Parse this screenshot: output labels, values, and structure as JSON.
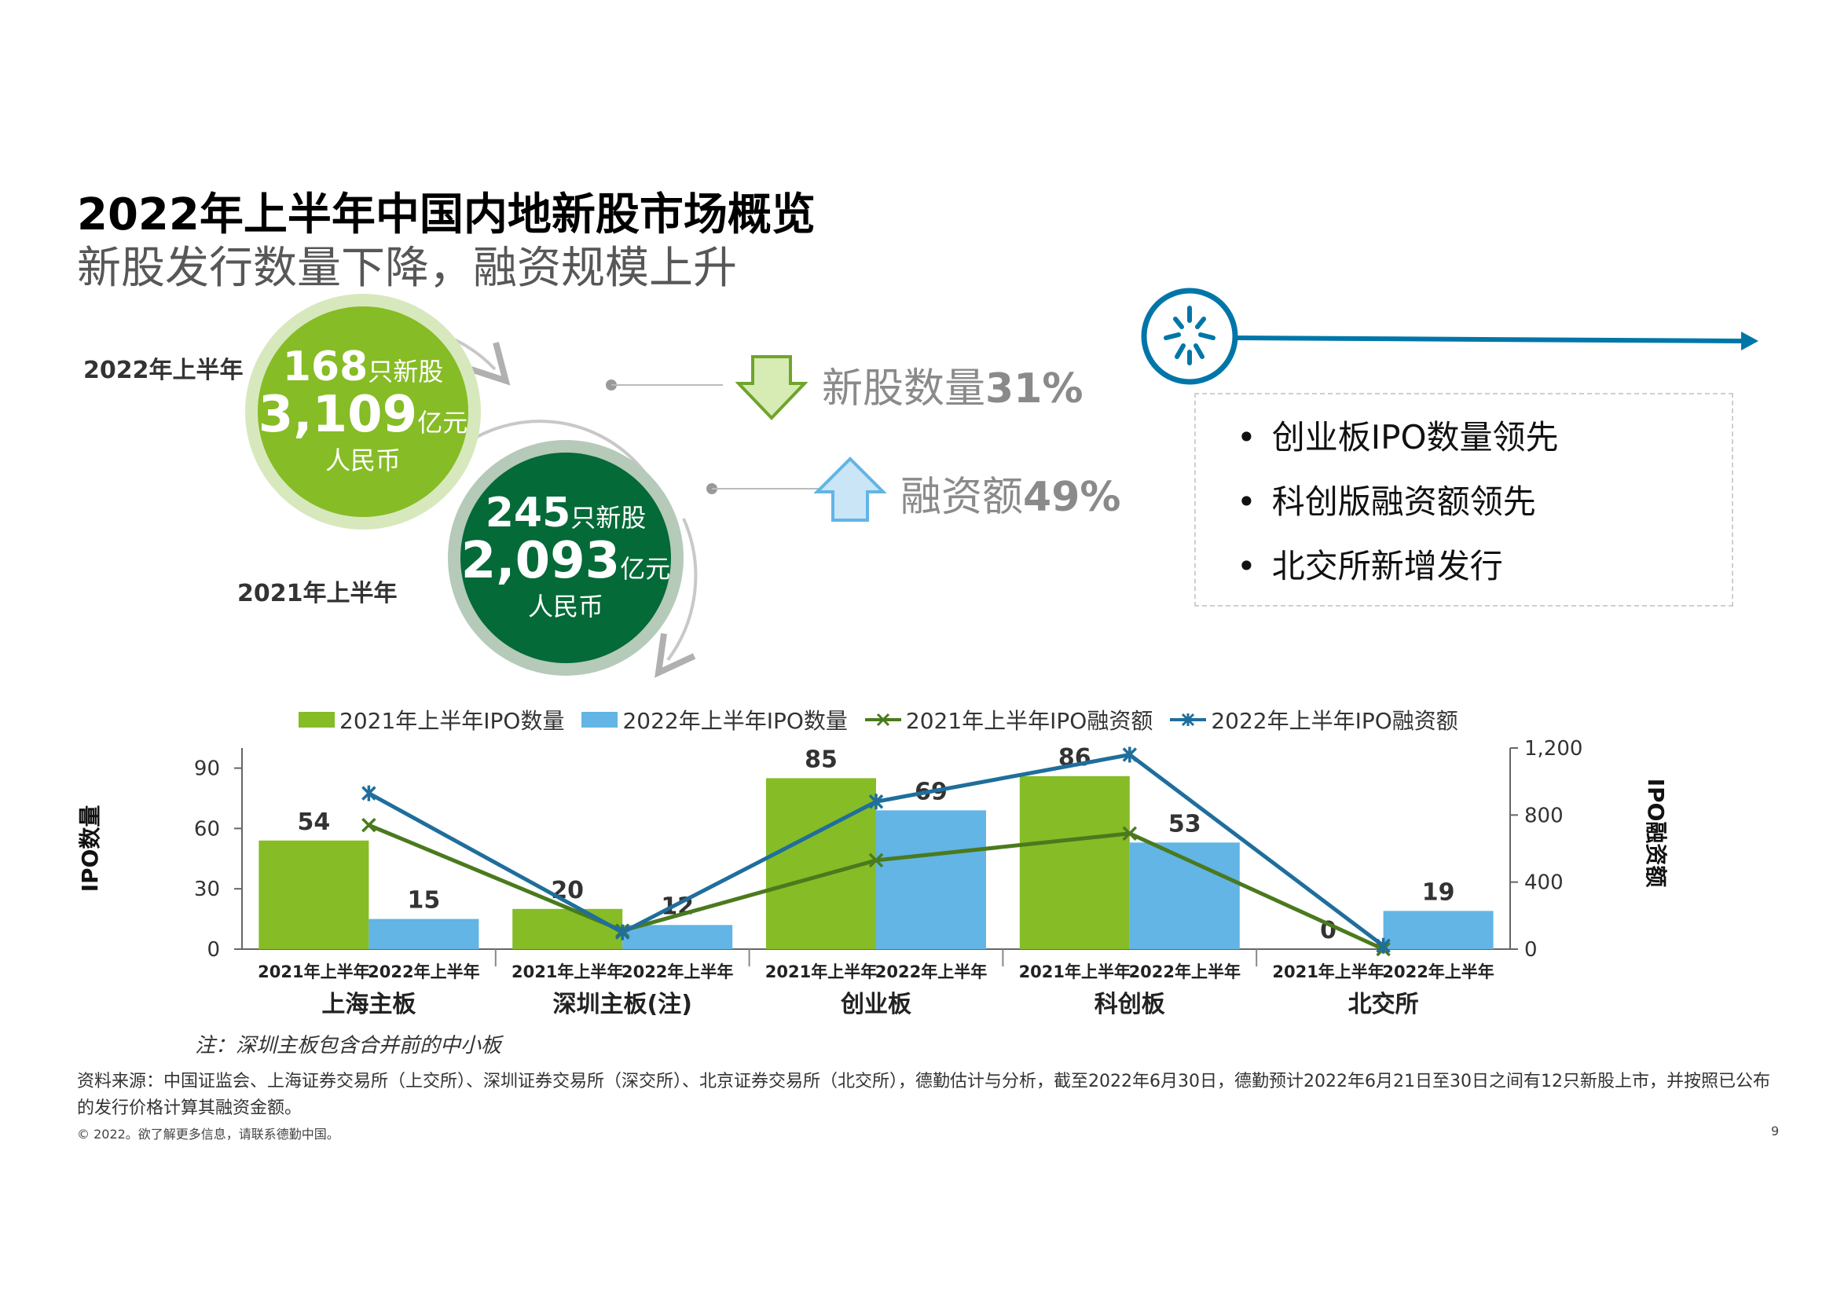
{
  "header": {
    "title": "2022年上半年中国内地新股市场概览",
    "subtitle": "新股发行数量下降，融资规模上升"
  },
  "summary": {
    "h1_2022": {
      "label": "2022年上半年",
      "count": "168",
      "count_unit": "只新股",
      "amount": "3,109",
      "amount_unit": "亿元",
      "currency": "人民币"
    },
    "h1_2021": {
      "label": "2021年上半年",
      "count": "245",
      "count_unit": "只新股",
      "amount": "2,093",
      "amount_unit": "亿元",
      "currency": "人民币"
    },
    "changes": [
      {
        "label": "新股数量",
        "value": "31%",
        "direction": "down"
      },
      {
        "label": "融资额",
        "value": "49%",
        "direction": "up"
      }
    ]
  },
  "highlights": [
    "创业板IPO数量领先",
    "科创版融资额领先",
    "北交所新增发行"
  ],
  "chart_data": {
    "type": "bar",
    "categories": [
      "上海主板",
      "深圳主板(注)",
      "创业板",
      "科创板",
      "北交所"
    ],
    "sub_labels": [
      "2021年上半年",
      "2022年上半年"
    ],
    "series": [
      {
        "name": "2021年上半年IPO数量",
        "kind": "bar",
        "axis": "left",
        "color": "#86bc25",
        "values": [
          54,
          20,
          85,
          86,
          0
        ]
      },
      {
        "name": "2022年上半年IPO数量",
        "kind": "bar",
        "axis": "left",
        "color": "#62b5e5",
        "values": [
          15,
          12,
          69,
          53,
          19
        ]
      },
      {
        "name": "2021年上半年IPO融资额",
        "kind": "line",
        "axis": "right",
        "color": "#4a7a1e",
        "marker": "x",
        "values": [
          740,
          110,
          530,
          690,
          0
        ]
      },
      {
        "name": "2022年上半年IPO融资额",
        "kind": "line",
        "axis": "right",
        "color": "#1f6e9c",
        "marker": "star",
        "values": [
          930,
          100,
          880,
          1160,
          20
        ]
      }
    ],
    "ylabel": "IPO数量",
    "y2label": "IPO融资额",
    "ylim": [
      0,
      100
    ],
    "y2lim": [
      0,
      1200
    ],
    "yticks": [
      "0",
      "30",
      "60",
      "90"
    ],
    "y2ticks": [
      "0",
      "400",
      "800",
      "1,200"
    ],
    "legend": "top"
  },
  "footer": {
    "note": "注：深圳主板包含合并前的中小板",
    "source": "资料来源：中国证监会、上海证券交易所（上交所）、深圳证券交易所（深交所）、北京证券交易所（北交所），德勤估计与分析，截至2022年6月30日，德勤预计2022年6月21日至30日之间有12只新股上市，并按照已公布的发行价格计算其融资金额。",
    "copyright": "© 2022。欲了解更多信息，请联系德勤中国。",
    "page": "9"
  },
  "colors": {
    "green": "#86bc25",
    "dark_green": "#046a38",
    "blue": "#62b5e5",
    "dark_blue": "#0076a8",
    "gray_text": "#8a8a8a"
  },
  "icons": [
    "spark-icon",
    "arrow-down-icon",
    "arrow-up-icon",
    "long-arrow-icon"
  ]
}
